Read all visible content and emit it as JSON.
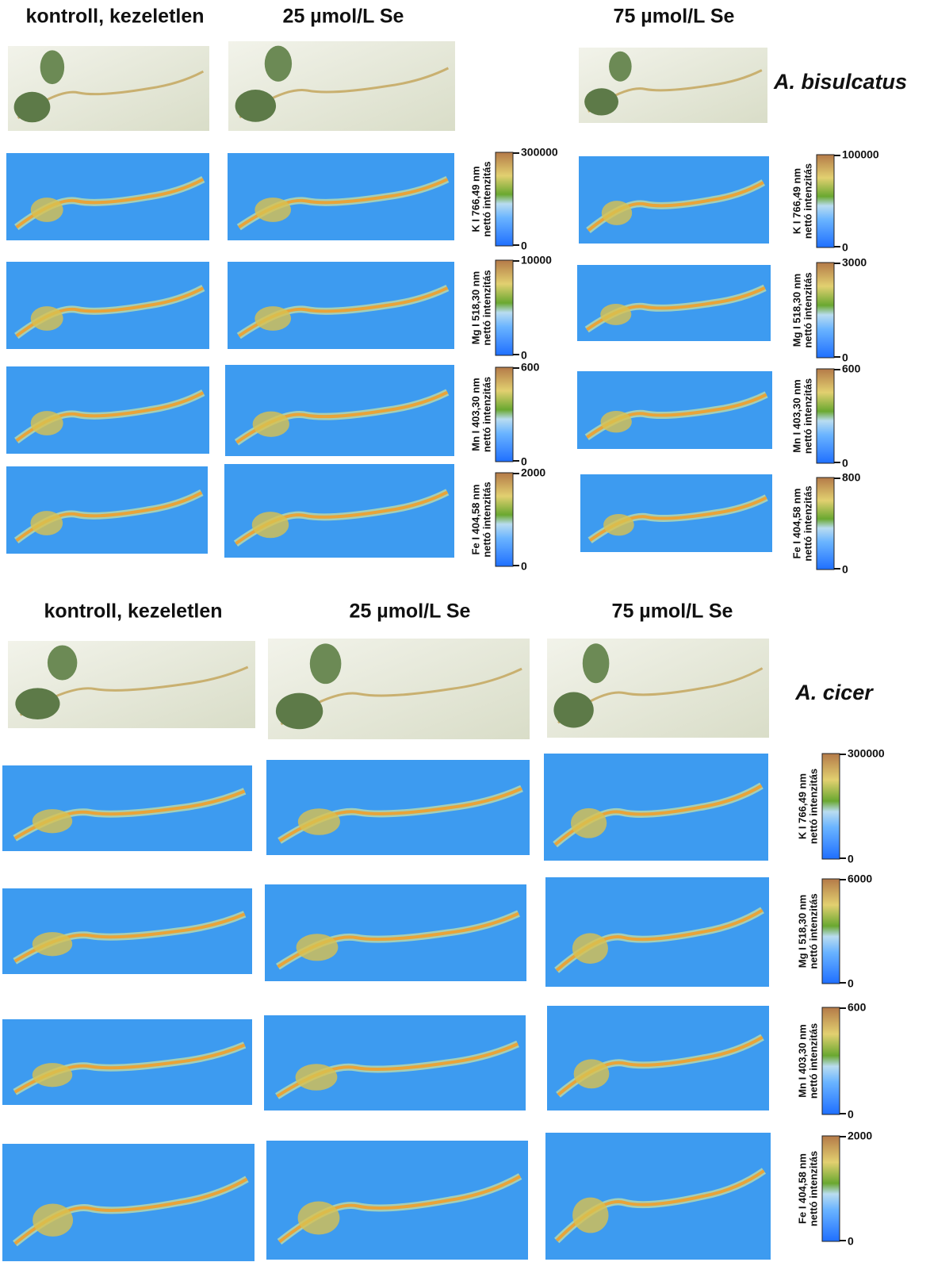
{
  "figure": {
    "panels": [
      {
        "species": "A. bisulcatus",
        "column_headers": [
          "kontroll, kezeletlen",
          "25 µmol/L Se",
          "75 µmol/L Se"
        ],
        "colorbar_sets": [
          [
            {
              "element_line": "K I 766,49 nm",
              "unit_line": "nettó intenzitás",
              "max": 300000,
              "min": 0
            },
            {
              "element_line": "Mg I 518,30 nm",
              "unit_line": "nettó intenzitás",
              "max": 10000,
              "min": 0
            },
            {
              "element_line": "Mn I 403,30 nm",
              "unit_line": "nettó intenzitás",
              "max": 600,
              "min": 0
            },
            {
              "element_line": "Fe I 404,58 nm",
              "unit_line": "nettó intenzitás",
              "max": 2000,
              "min": 0
            }
          ],
          [
            {
              "element_line": "K I 766,49 nm",
              "unit_line": "nettó intenzitás",
              "max": 100000,
              "min": 0
            },
            {
              "element_line": "Mg I 518,30 nm",
              "unit_line": "nettó intenzitás",
              "max": 3000,
              "min": 0
            },
            {
              "element_line": "Mn I 403,30 nm",
              "unit_line": "nettó intenzitás",
              "max": 600,
              "min": 0
            },
            {
              "element_line": "Fe I 404,58 nm",
              "unit_line": "nettó intenzitás",
              "max": 800,
              "min": 0
            }
          ]
        ]
      },
      {
        "species": "A. cicer",
        "column_headers": [
          "kontroll, kezeletlen",
          "25 µmol/L Se",
          "75 µmol/L Se"
        ],
        "colorbar_sets": [
          [
            {
              "element_line": "K I 766,49 nm",
              "unit_line": "nettó intenzitás",
              "max": 300000,
              "min": 0
            },
            {
              "element_line": "Mg I 518,30 nm",
              "unit_line": "nettó intenzitás",
              "max": 6000,
              "min": 0
            },
            {
              "element_line": "Mn I 403,30 nm",
              "unit_line": "nettó intenzitás",
              "max": 600,
              "min": 0
            },
            {
              "element_line": "Fe I 404,58 nm",
              "unit_line": "nettó intenzitás",
              "max": 2000,
              "min": 0
            }
          ]
        ]
      }
    ]
  }
}
